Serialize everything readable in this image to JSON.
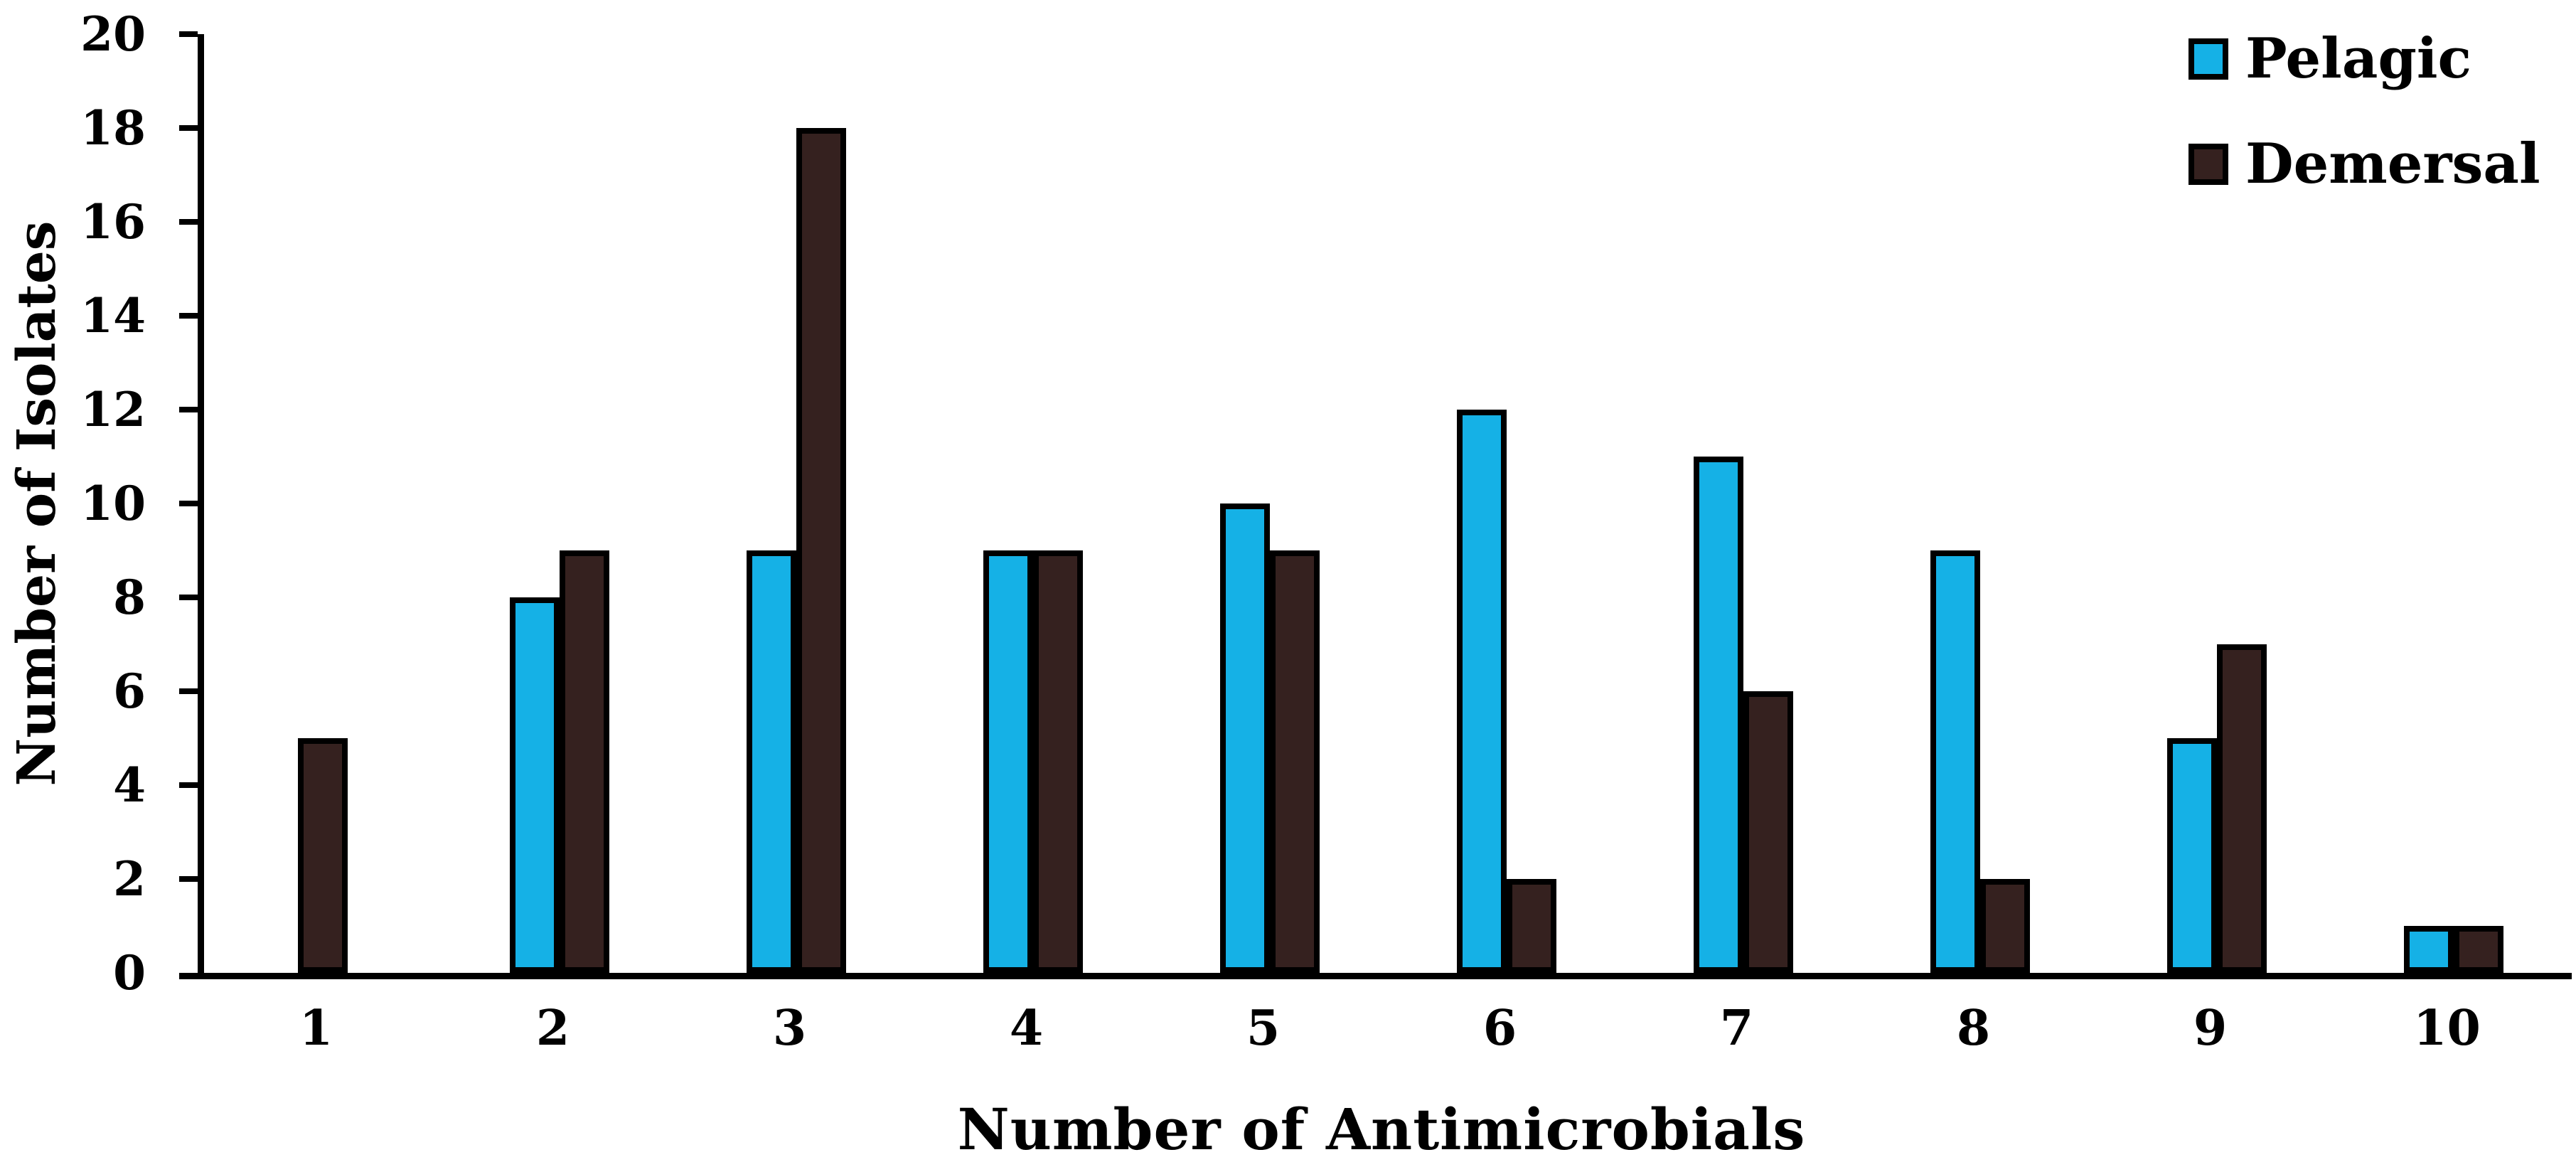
{
  "figure": {
    "background": "#ffffff",
    "text_color": "#000000",
    "axis_color": "#000000"
  },
  "chart_data": {
    "type": "bar",
    "categories": [
      "1",
      "2",
      "3",
      "4",
      "5",
      "6",
      "7",
      "8",
      "9",
      "10"
    ],
    "series": [
      {
        "name": "Pelagic",
        "color": "#15b1e6",
        "border_color": "#000000",
        "values": [
          0,
          8,
          9,
          9,
          10,
          12,
          11,
          9,
          5,
          1
        ]
      },
      {
        "name": "Demersal",
        "color": "#35211f",
        "border_color": "#000000",
        "values": [
          5,
          9,
          18,
          9,
          9,
          2,
          6,
          2,
          7,
          1
        ]
      }
    ],
    "title": "",
    "xlabel": "Number of Antimicrobials",
    "ylabel": "Number of Isolates",
    "ylim": [
      0,
      20
    ],
    "yticks": [
      0,
      2,
      4,
      6,
      8,
      10,
      12,
      14,
      16,
      18,
      20
    ],
    "grid": false,
    "legend_position": "top-right",
    "legend_entries": [
      "Pelagic",
      "Demersal"
    ]
  }
}
